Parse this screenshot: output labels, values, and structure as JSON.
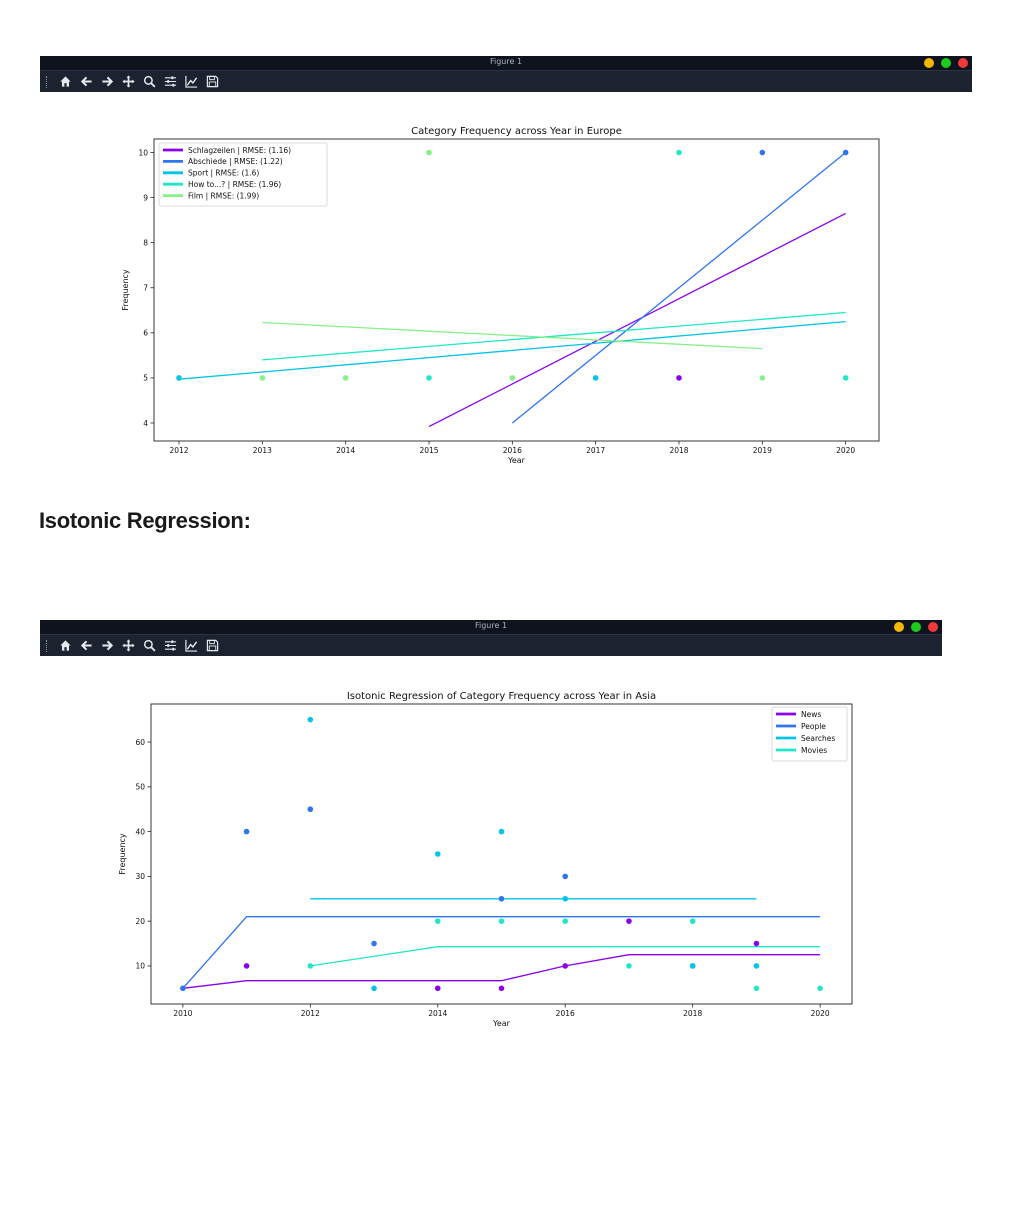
{
  "window1": {
    "title": "Figure 1"
  },
  "window2": {
    "title": "Figure 1"
  },
  "toolbar_icons": [
    "home-icon",
    "back-arrow-icon",
    "forward-arrow-icon",
    "pan-icon",
    "zoom-icon",
    "configure-subplots-icon",
    "edit-axis-icon",
    "save-icon"
  ],
  "window_controls": {
    "minimize_color": "#f5b800",
    "maximize_color": "#1ecb1e",
    "close_color": "#f03a3a"
  },
  "section_heading": "Isotonic Regression:",
  "chart_data": [
    {
      "type": "scatter",
      "title": "Category Frequency across Year in Europe",
      "xlabel": "Year",
      "ylabel": "Frequency",
      "xlim": [
        2011.7,
        2020.4
      ],
      "ylim": [
        3.6,
        10.3
      ],
      "xticks": [
        2012,
        2013,
        2014,
        2015,
        2016,
        2017,
        2018,
        2019,
        2020
      ],
      "yticks": [
        4,
        5,
        6,
        7,
        8,
        9,
        10
      ],
      "legend_position": "top-left",
      "grid": false,
      "series": [
        {
          "name": "Schlagzeilen | RMSE: (1.16)",
          "color": "#8a00f0",
          "points": [
            [
              2018,
              5
            ]
          ],
          "fit": [
            [
              2015,
              3.92
            ],
            [
              2020,
              8.65
            ]
          ]
        },
        {
          "name": "Abschiede | RMSE: (1.22)",
          "color": "#2f74f0",
          "points": [
            [
              2019,
              10
            ],
            [
              2020,
              10
            ]
          ],
          "fit": [
            [
              2016,
              4.0
            ],
            [
              2020,
              10.0
            ]
          ]
        },
        {
          "name": "Sport | RMSE: (1.6)",
          "color": "#00c4e8",
          "points": [
            [
              2012,
              5
            ],
            [
              2017,
              5
            ]
          ],
          "fit": [
            [
              2012,
              4.97
            ],
            [
              2020,
              6.25
            ]
          ]
        },
        {
          "name": "How to...? | RMSE: (1.96)",
          "color": "#1ee8c8",
          "points": [
            [
              2015,
              5
            ],
            [
              2018,
              10
            ],
            [
              2020,
              5
            ]
          ],
          "fit": [
            [
              2013,
              5.4
            ],
            [
              2020,
              6.45
            ]
          ]
        },
        {
          "name": "Film | RMSE: (1.99)",
          "color": "#86f08a",
          "points": [
            [
              2013,
              5
            ],
            [
              2014,
              5
            ],
            [
              2015,
              10
            ],
            [
              2016,
              5
            ],
            [
              2019,
              5
            ]
          ],
          "fit": [
            [
              2013,
              6.23
            ],
            [
              2019,
              5.65
            ]
          ]
        }
      ]
    },
    {
      "type": "scatter",
      "title": "Isotonic Regression of Category Frequency across Year in Asia",
      "xlabel": "Year",
      "ylabel": "Frequency",
      "xlim": [
        2009.5,
        2020.5
      ],
      "ylim": [
        1.5,
        68.5
      ],
      "xticks": [
        2010,
        2012,
        2014,
        2016,
        2018,
        2020
      ],
      "yticks": [
        10,
        20,
        30,
        40,
        50,
        60
      ],
      "legend_position": "top-right",
      "grid": false,
      "series": [
        {
          "name": "News",
          "color": "#8a00f0",
          "points": [
            [
              2011,
              10
            ],
            [
              2014,
              5
            ],
            [
              2015,
              5
            ],
            [
              2016,
              10
            ],
            [
              2017,
              20
            ],
            [
              2019,
              15
            ]
          ],
          "fit": [
            [
              2010,
              5
            ],
            [
              2011,
              6.7
            ],
            [
              2015,
              6.7
            ],
            [
              2016,
              10
            ],
            [
              2017,
              12.5
            ],
            [
              2020,
              12.5
            ]
          ]
        },
        {
          "name": "People",
          "color": "#2f74f0",
          "points": [
            [
              2010,
              5
            ],
            [
              2011,
              40
            ],
            [
              2012,
              45
            ],
            [
              2013,
              15
            ],
            [
              2015,
              25
            ],
            [
              2016,
              30
            ],
            [
              2018,
              10
            ]
          ],
          "fit": [
            [
              2010,
              5
            ],
            [
              2011,
              21
            ],
            [
              2020,
              21
            ]
          ]
        },
        {
          "name": "Searches",
          "color": "#00c4e8",
          "points": [
            [
              2012,
              65
            ],
            [
              2013,
              5
            ],
            [
              2014,
              35
            ],
            [
              2015,
              40
            ],
            [
              2016,
              25
            ],
            [
              2018,
              10
            ],
            [
              2019,
              10
            ]
          ],
          "fit": [
            [
              2012,
              25
            ],
            [
              2019,
              25
            ]
          ]
        },
        {
          "name": "Movies",
          "color": "#1ee8c8",
          "points": [
            [
              2012,
              10
            ],
            [
              2014,
              20
            ],
            [
              2015,
              20
            ],
            [
              2016,
              20
            ],
            [
              2017,
              10
            ],
            [
              2018,
              20
            ],
            [
              2019,
              5
            ],
            [
              2020,
              5
            ]
          ],
          "fit": [
            [
              2012,
              10
            ],
            [
              2014,
              14.3
            ],
            [
              2020,
              14.3
            ]
          ]
        }
      ]
    }
  ]
}
